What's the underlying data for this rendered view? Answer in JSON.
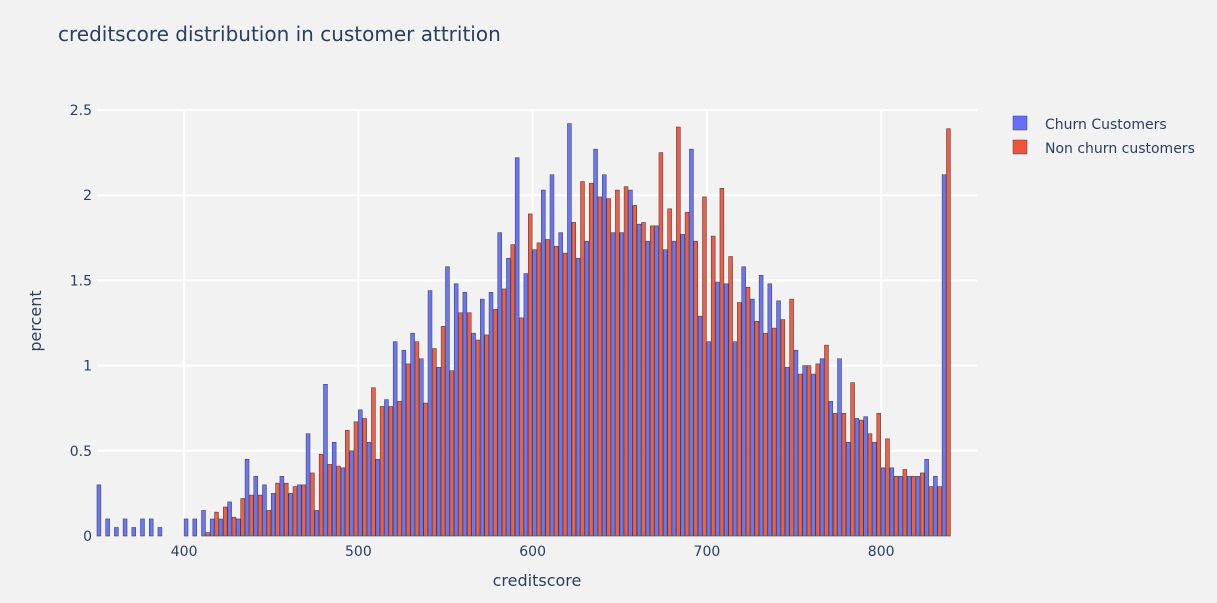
{
  "chart_data": {
    "type": "bar",
    "title": "creditscore distribution in customer attrition",
    "xlabel": "creditscore",
    "ylabel": "percent",
    "xlim": [
      350,
      855
    ],
    "ylim": [
      0,
      2.5
    ],
    "x_ticks": [
      400,
      500,
      600,
      700,
      800
    ],
    "y_ticks": [
      0,
      0.5,
      1,
      1.5,
      2,
      2.5
    ],
    "y_tick_labels": [
      "0",
      "0.5",
      "1",
      "1.5",
      "2",
      "2.5"
    ],
    "grid": true,
    "legend_position": "top-right",
    "bin_start": 350,
    "bin_width": 5,
    "series": [
      {
        "name": "Churn Customers",
        "color": "#636efa",
        "values": [
          0.3,
          0.1,
          0.05,
          0.1,
          0.05,
          0.1,
          0.1,
          0.05,
          0,
          0,
          0.1,
          0.1,
          0.15,
          0.1,
          0.1,
          0.2,
          0.1,
          0.45,
          0.35,
          0.3,
          0.25,
          0.35,
          0.25,
          0.3,
          0.6,
          0.15,
          0.89,
          0.55,
          0.4,
          0.5,
          0.74,
          0.55,
          0.45,
          0.8,
          1.14,
          1.09,
          1.19,
          1.04,
          1.44,
          0.99,
          1.58,
          1.48,
          1.43,
          1.19,
          1.39,
          1.43,
          1.78,
          1.63,
          2.22,
          1.54,
          1.68,
          2.03,
          2.12,
          1.78,
          2.42,
          1.63,
          1.73,
          2.27,
          2.12,
          1.78,
          1.78,
          2.03,
          1.83,
          1.73,
          1.82,
          1.68,
          1.73,
          1.77,
          2.27,
          1.29,
          1.14,
          1.49,
          1.48,
          1.14,
          1.58,
          1.39,
          1.53,
          1.48,
          1.38,
          0.99,
          1.09,
          1.0,
          0.95,
          1.04,
          0.79,
          1.04,
          0.55,
          0.69,
          0.7,
          0.55,
          0.4,
          0.4,
          0.35,
          0.35,
          0.35,
          0.45,
          0.35,
          2.12
        ],
        "hatch_start": null
      },
      {
        "name": "Non churn customers",
        "color": "#ef553b",
        "values": [
          0,
          0,
          0,
          0,
          0,
          0,
          0,
          0,
          0,
          0,
          0,
          0,
          0.02,
          0.14,
          0.17,
          0.11,
          0.22,
          0.24,
          0.24,
          0.15,
          0.31,
          0.31,
          0.29,
          0.3,
          0.37,
          0.48,
          0.42,
          0.41,
          0.62,
          0.67,
          0.69,
          0.87,
          0.76,
          0.76,
          0.79,
          1.01,
          1.14,
          0.78,
          1.1,
          1.23,
          0.97,
          1.31,
          1.31,
          1.15,
          1.18,
          1.33,
          1.45,
          1.71,
          1.28,
          1.89,
          1.72,
          1.74,
          1.7,
          1.66,
          1.84,
          2.08,
          2.07,
          1.99,
          1.98,
          2.03,
          2.05,
          1.94,
          1.84,
          1.82,
          2.25,
          1.92,
          2.4,
          1.9,
          1.73,
          1.99,
          1.76,
          2.04,
          1.64,
          1.37,
          1.46,
          1.26,
          1.19,
          1.22,
          1.27,
          1.39,
          0.95,
          1.0,
          1.01,
          1.12,
          0.72,
          0.72,
          0.9,
          0.68,
          0.6,
          0.72,
          0.57,
          0.35,
          0.39,
          0.35,
          0.37,
          0.29,
          0.29,
          2.39
        ]
      }
    ]
  }
}
